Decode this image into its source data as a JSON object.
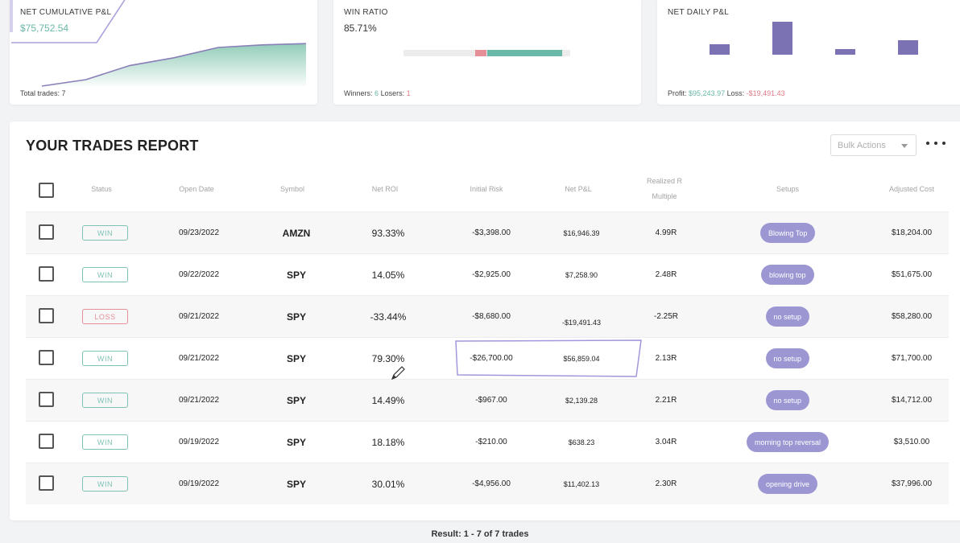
{
  "kpis": {
    "cumulative": {
      "label": "NET CUMULATIVE P&L",
      "value": "$75,752.54",
      "foot": "Total trades: 7",
      "trend": [
        0.0,
        0.05,
        0.16,
        0.22,
        0.3,
        0.32,
        0.33
      ]
    },
    "win_ratio": {
      "label": "WIN RATIO",
      "value": "85.71%",
      "winners_label": "Winners:",
      "winners": "6",
      "losers_label": "Losers:",
      "losers": "1",
      "win_fraction": 0.8571
    },
    "daily": {
      "label": "NET DAILY P&L",
      "profit_label": "Profit:",
      "profit": "$95,243.97",
      "loss_label": "Loss:",
      "loss": "-$19,491.43",
      "bars": [
        13,
        41,
        7,
        18
      ],
      "bar_color": "#7b72b3"
    }
  },
  "report": {
    "title": "YOUR TRADES REPORT",
    "bulk_actions": "Bulk Actions",
    "columns": {
      "status": "Status",
      "open_date": "Open Date",
      "symbol": "Symbol",
      "net_roi": "Net ROI",
      "initial_risk": "Initial Risk",
      "net_pnl": "Net P&L",
      "realized_r_1": "Realized R",
      "realized_r_2": "Multiple",
      "setups": "Setups",
      "adjusted_cost": "Adjusted Cost"
    },
    "rows": [
      {
        "status": "WIN",
        "date": "09/23/2022",
        "symbol": "AMZN",
        "roi": "93.33%",
        "risk": "-$3,398.00",
        "pnl": "$16,946.39",
        "r": "4.99R",
        "setup": "Blowing Top",
        "cost": "$18,204.00"
      },
      {
        "status": "WIN",
        "date": "09/22/2022",
        "symbol": "SPY",
        "roi": "14.05%",
        "risk": "-$2,925.00",
        "pnl": "$7,258.90",
        "r": "2.48R",
        "setup": "blowing top",
        "cost": "$51,675.00"
      },
      {
        "status": "LOSS",
        "date": "09/21/2022",
        "symbol": "SPY",
        "roi": "-33.44%",
        "risk": "-$8,680.00",
        "pnl": "-$19,491.43",
        "r": "-2.25R",
        "setup": "no setup",
        "cost": "$58,280.00"
      },
      {
        "status": "WIN",
        "date": "09/21/2022",
        "symbol": "SPY",
        "roi": "79.30%",
        "risk": "-$26,700.00",
        "pnl": "$56,859.04",
        "r": "2.13R",
        "setup": "no setup",
        "cost": "$71,700.00"
      },
      {
        "status": "WIN",
        "date": "09/21/2022",
        "symbol": "SPY",
        "roi": "14.49%",
        "risk": "-$967.00",
        "pnl": "$2,139.28",
        "r": "2.21R",
        "setup": "no setup",
        "cost": "$14,712.00"
      },
      {
        "status": "WIN",
        "date": "09/19/2022",
        "symbol": "SPY",
        "roi": "18.18%",
        "risk": "-$210.00",
        "pnl": "$638.23",
        "r": "3.04R",
        "setup": "morning top reversal",
        "cost": "$3,510.00"
      },
      {
        "status": "WIN",
        "date": "09/19/2022",
        "symbol": "SPY",
        "roi": "30.01%",
        "risk": "-$4,956.00",
        "pnl": "$11,402.13",
        "r": "2.30R",
        "setup": "opening drive",
        "cost": "$37,996.00"
      }
    ],
    "result": "Result: 1 - 7 of 7 trades"
  },
  "icons": {
    "more": "more-dots-icon",
    "bulk_caret": "caret-down-icon",
    "pen": "pen-cursor-icon"
  }
}
